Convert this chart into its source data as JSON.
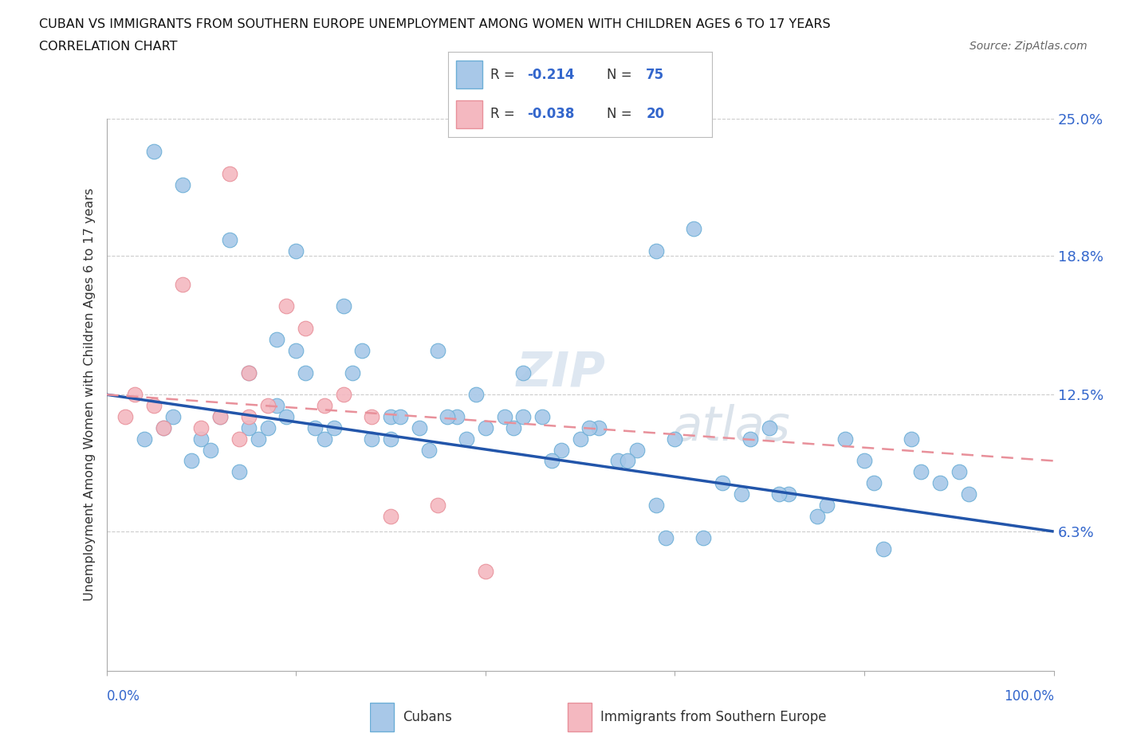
{
  "title_line1": "CUBAN VS IMMIGRANTS FROM SOUTHERN EUROPE UNEMPLOYMENT AMONG WOMEN WITH CHILDREN AGES 6 TO 17 YEARS",
  "title_line2": "CORRELATION CHART",
  "source": "Source: ZipAtlas.com",
  "ylabel": "Unemployment Among Women with Children Ages 6 to 17 years",
  "xlim": [
    0,
    100
  ],
  "ylim": [
    0,
    25
  ],
  "ytick_vals": [
    6.3,
    12.5,
    18.8,
    25.0
  ],
  "ytick_labels": [
    "6.3%",
    "12.5%",
    "18.8%",
    "25.0%"
  ],
  "cuban_color": "#a8c8e8",
  "cuban_edge": "#6baed6",
  "southern_color": "#f4b8c0",
  "southern_edge": "#e8909a",
  "blue_line_color": "#2255aa",
  "pink_line_color": "#e8909a",
  "label_color": "#3366cc",
  "watermark": "ZIPatlas",
  "legend_R1_val": "-0.214",
  "legend_N1_val": "75",
  "legend_R2_val": "-0.038",
  "legend_N2_val": "20",
  "cubans_label": "Cubans",
  "southern_label": "Immigrants from Southern Europe",
  "blue_line_y0": 12.5,
  "blue_line_y1": 6.3,
  "pink_line_y0": 12.5,
  "pink_line_y1": 9.5,
  "cubans_data_x": [
    4,
    5,
    7,
    10,
    12,
    13,
    15,
    16,
    18,
    18,
    19,
    20,
    22,
    23,
    25,
    26,
    28,
    30,
    33,
    35,
    37,
    38,
    40,
    42,
    44,
    46,
    48,
    50,
    52,
    54,
    56,
    58,
    60,
    62,
    65,
    68,
    70,
    72,
    75,
    78,
    80,
    82,
    85,
    88,
    90,
    6,
    9,
    11,
    14,
    17,
    21,
    24,
    27,
    31,
    34,
    36,
    39,
    43,
    47,
    51,
    55,
    59,
    63,
    67,
    71,
    76,
    81,
    86,
    91,
    8,
    15,
    20,
    30,
    44,
    58
  ],
  "cubans_data_y": [
    10.5,
    23.5,
    11.5,
    10.5,
    11.5,
    19.5,
    13.5,
    10.5,
    15.0,
    12.0,
    11.5,
    14.5,
    11.0,
    10.5,
    16.5,
    13.5,
    10.5,
    11.5,
    11.0,
    14.5,
    11.5,
    10.5,
    11.0,
    11.5,
    13.5,
    11.5,
    10.0,
    10.5,
    11.0,
    9.5,
    10.0,
    7.5,
    10.5,
    20.0,
    8.5,
    10.5,
    11.0,
    8.0,
    7.0,
    10.5,
    9.5,
    5.5,
    10.5,
    8.5,
    9.0,
    11.0,
    9.5,
    10.0,
    9.0,
    11.0,
    13.5,
    11.0,
    14.5,
    11.5,
    10.0,
    11.5,
    12.5,
    11.0,
    9.5,
    11.0,
    9.5,
    6.0,
    6.0,
    8.0,
    8.0,
    7.5,
    8.5,
    9.0,
    8.0,
    22.0,
    11.0,
    19.0,
    10.5,
    11.5,
    19.0
  ],
  "southern_data_x": [
    2,
    3,
    5,
    6,
    8,
    10,
    12,
    13,
    14,
    15,
    17,
    19,
    21,
    23,
    25,
    28,
    30,
    35,
    40,
    15
  ],
  "southern_data_y": [
    11.5,
    12.5,
    12.0,
    11.0,
    17.5,
    11.0,
    11.5,
    22.5,
    10.5,
    11.5,
    12.0,
    16.5,
    15.5,
    12.0,
    12.5,
    11.5,
    7.0,
    7.5,
    4.5,
    13.5
  ]
}
